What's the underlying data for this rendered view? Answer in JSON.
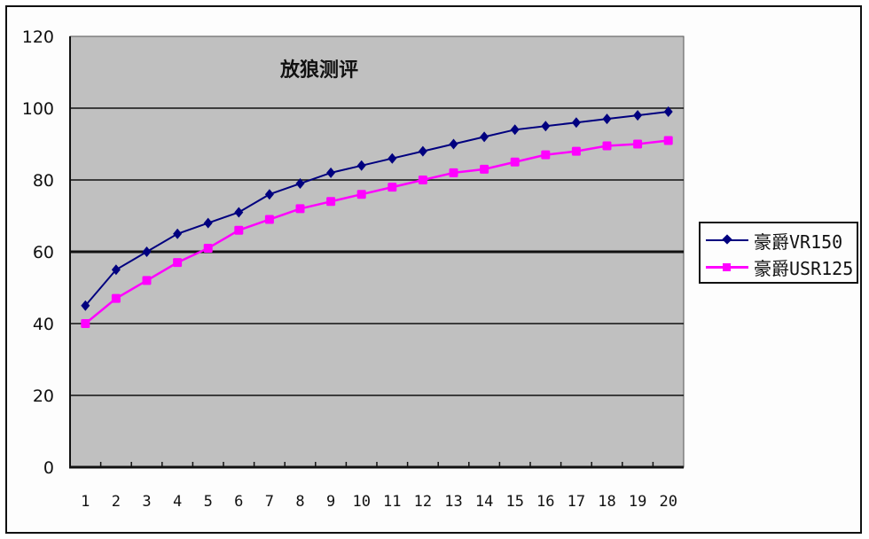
{
  "chart_data": {
    "type": "line",
    "title": "放狼测评",
    "xlabel": "",
    "ylabel": "",
    "categories": [
      "1",
      "2",
      "3",
      "4",
      "5",
      "6",
      "7",
      "8",
      "9",
      "10",
      "11",
      "12",
      "13",
      "14",
      "15",
      "16",
      "17",
      "18",
      "19",
      "20"
    ],
    "x": [
      1,
      2,
      3,
      4,
      5,
      6,
      7,
      8,
      9,
      10,
      11,
      12,
      13,
      14,
      15,
      16,
      17,
      18,
      19,
      20
    ],
    "series": [
      {
        "name": "豪爵VR150",
        "color": "#00007f",
        "marker": "diamond",
        "values": [
          45,
          55,
          60,
          65,
          68,
          71,
          76,
          79,
          82,
          84,
          86,
          88,
          90,
          92,
          94,
          95,
          96,
          97,
          98,
          99
        ]
      },
      {
        "name": "豪爵USR125",
        "color": "#ff00ff",
        "marker": "square",
        "values": [
          40,
          47,
          52,
          57,
          61,
          66,
          69,
          72,
          74,
          76,
          78,
          80,
          82,
          83,
          85,
          87,
          88,
          89.5,
          90,
          91
        ]
      }
    ],
    "ylim": [
      0,
      120
    ],
    "yticks": [
      0,
      20,
      40,
      60,
      80,
      100,
      120
    ],
    "ytick_labels": [
      "0",
      "20",
      "40",
      "60",
      "80",
      "100",
      "120"
    ],
    "grid": true,
    "highlighted_gridline": 60,
    "legend_position": "right",
    "plot_background": "#c0c0c0"
  },
  "legend": {
    "items": [
      {
        "label": "豪爵VR150",
        "color": "#00007f"
      },
      {
        "label": "豪爵USR125",
        "color": "#ff00ff"
      }
    ]
  }
}
